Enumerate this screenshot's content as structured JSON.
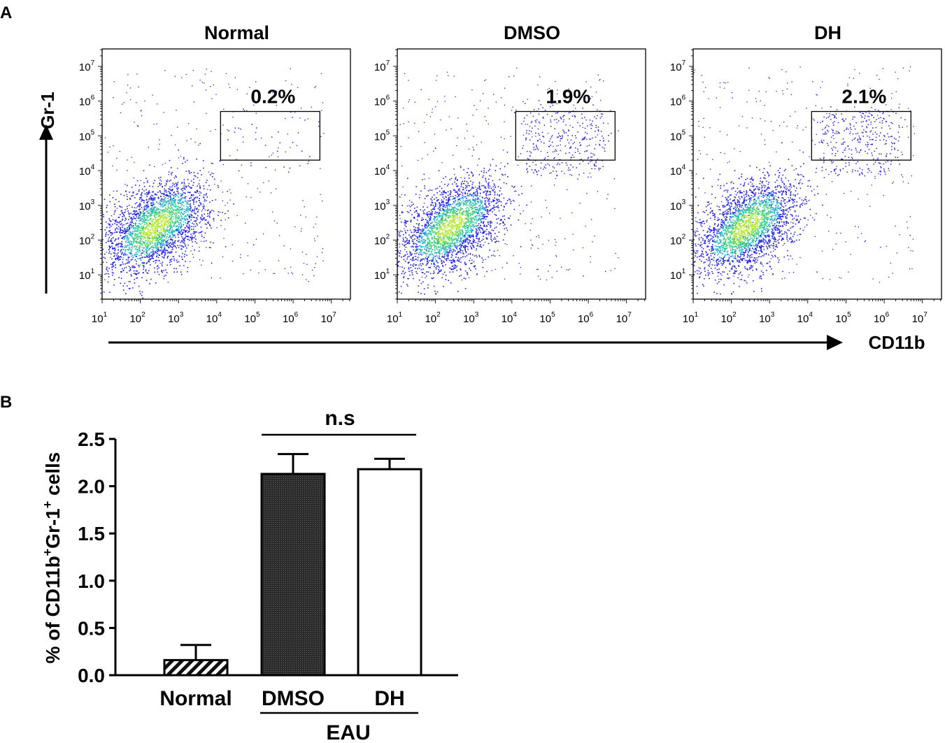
{
  "panel_a_label": "A",
  "panel_b_label": "B",
  "chart_data": [
    {
      "type": "scatter",
      "panel": "A",
      "plots": [
        {
          "title": "Normal",
          "gate_label": "0.2%",
          "gate_value_percent": 0.2
        },
        {
          "title": "DMSO",
          "gate_label": "1.9%",
          "gate_value_percent": 1.9
        },
        {
          "title": "DH",
          "gate_label": "2.1%",
          "gate_value_percent": 2.1
        }
      ],
      "ylabel": "Gr-1",
      "xlabel": "CD11b",
      "axis_scale": "log",
      "tick_base": "10",
      "tick_exponents": [
        "1",
        "2",
        "3",
        "4",
        "5",
        "6",
        "7"
      ],
      "xlim": [
        1,
        7.5
      ],
      "ylim": [
        0.3,
        7.5
      ],
      "gate": {
        "x_range_log": [
          4.1,
          6.7
        ],
        "y_range_log": [
          4.3,
          5.7
        ]
      },
      "density_colors": [
        "#1e1ee6",
        "#1fb3c9",
        "#3ad27a",
        "#b8e83a"
      ]
    },
    {
      "type": "bar",
      "panel": "B",
      "categories": [
        "Normal",
        "DMSO",
        "DH"
      ],
      "values": [
        0.16,
        2.13,
        2.18
      ],
      "errors": [
        0.16,
        0.21,
        0.11
      ],
      "fills": [
        "hatched",
        "dark",
        "white"
      ],
      "ylabel": "% of CD11b+Gr-1+ cells",
      "ylabel_parts": [
        "% of CD11b",
        "+",
        "Gr-1",
        "+",
        " cells"
      ],
      "yticks": [
        "0.0",
        "0.5",
        "1.0",
        "1.5",
        "2.0",
        "2.5"
      ],
      "ylim": [
        0,
        2.5
      ],
      "group_label": "EAU",
      "group_members": [
        "DMSO",
        "DH"
      ],
      "significance": "n.s"
    }
  ]
}
